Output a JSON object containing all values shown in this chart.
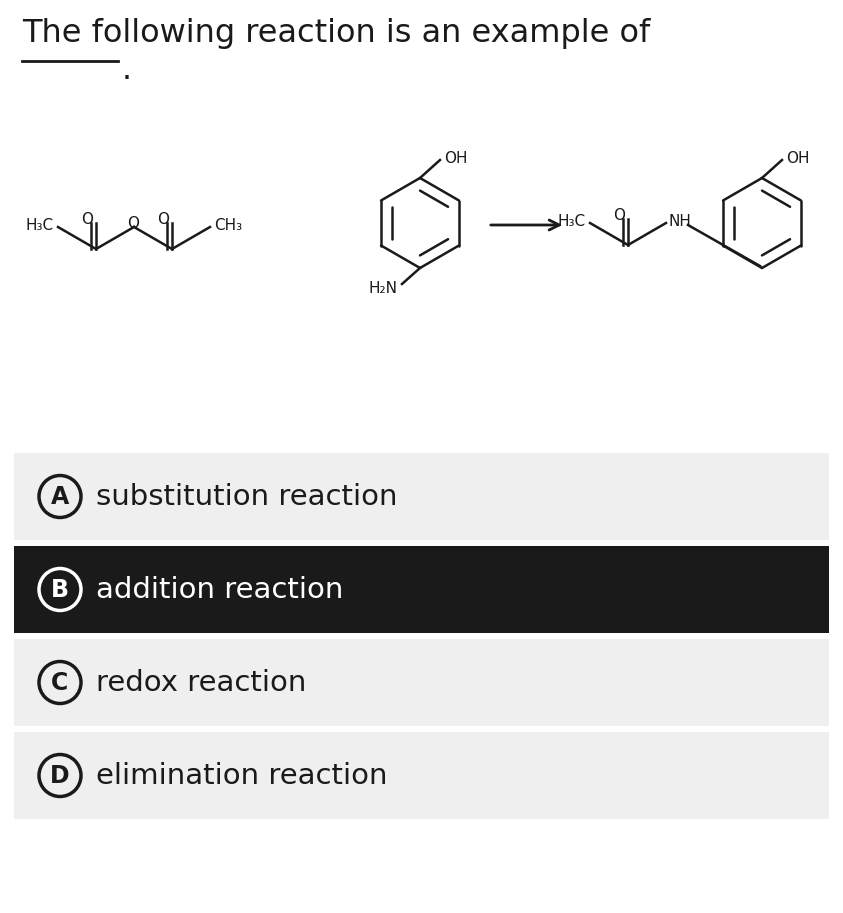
{
  "title": "The following reaction is an example of",
  "background_color": "#ffffff",
  "options": [
    {
      "letter": "A",
      "text": "substitution reaction",
      "bg": "#efefef",
      "fg": "#1a1a1a",
      "circle_color": "#1a1a1a",
      "selected": false
    },
    {
      "letter": "B",
      "text": "addition reaction",
      "bg": "#1a1a1a",
      "fg": "#ffffff",
      "circle_color": "#ffffff",
      "selected": true
    },
    {
      "letter": "C",
      "text": "redox reaction",
      "bg": "#efefef",
      "fg": "#1a1a1a",
      "circle_color": "#1a1a1a",
      "selected": false
    },
    {
      "letter": "D",
      "text": "elimination reaction",
      "bg": "#efefef",
      "fg": "#1a1a1a",
      "circle_color": "#1a1a1a",
      "selected": false
    }
  ],
  "option_font_size": 21,
  "title_font_size": 23,
  "line_color": "#1a1a1a",
  "lw": 1.8
}
